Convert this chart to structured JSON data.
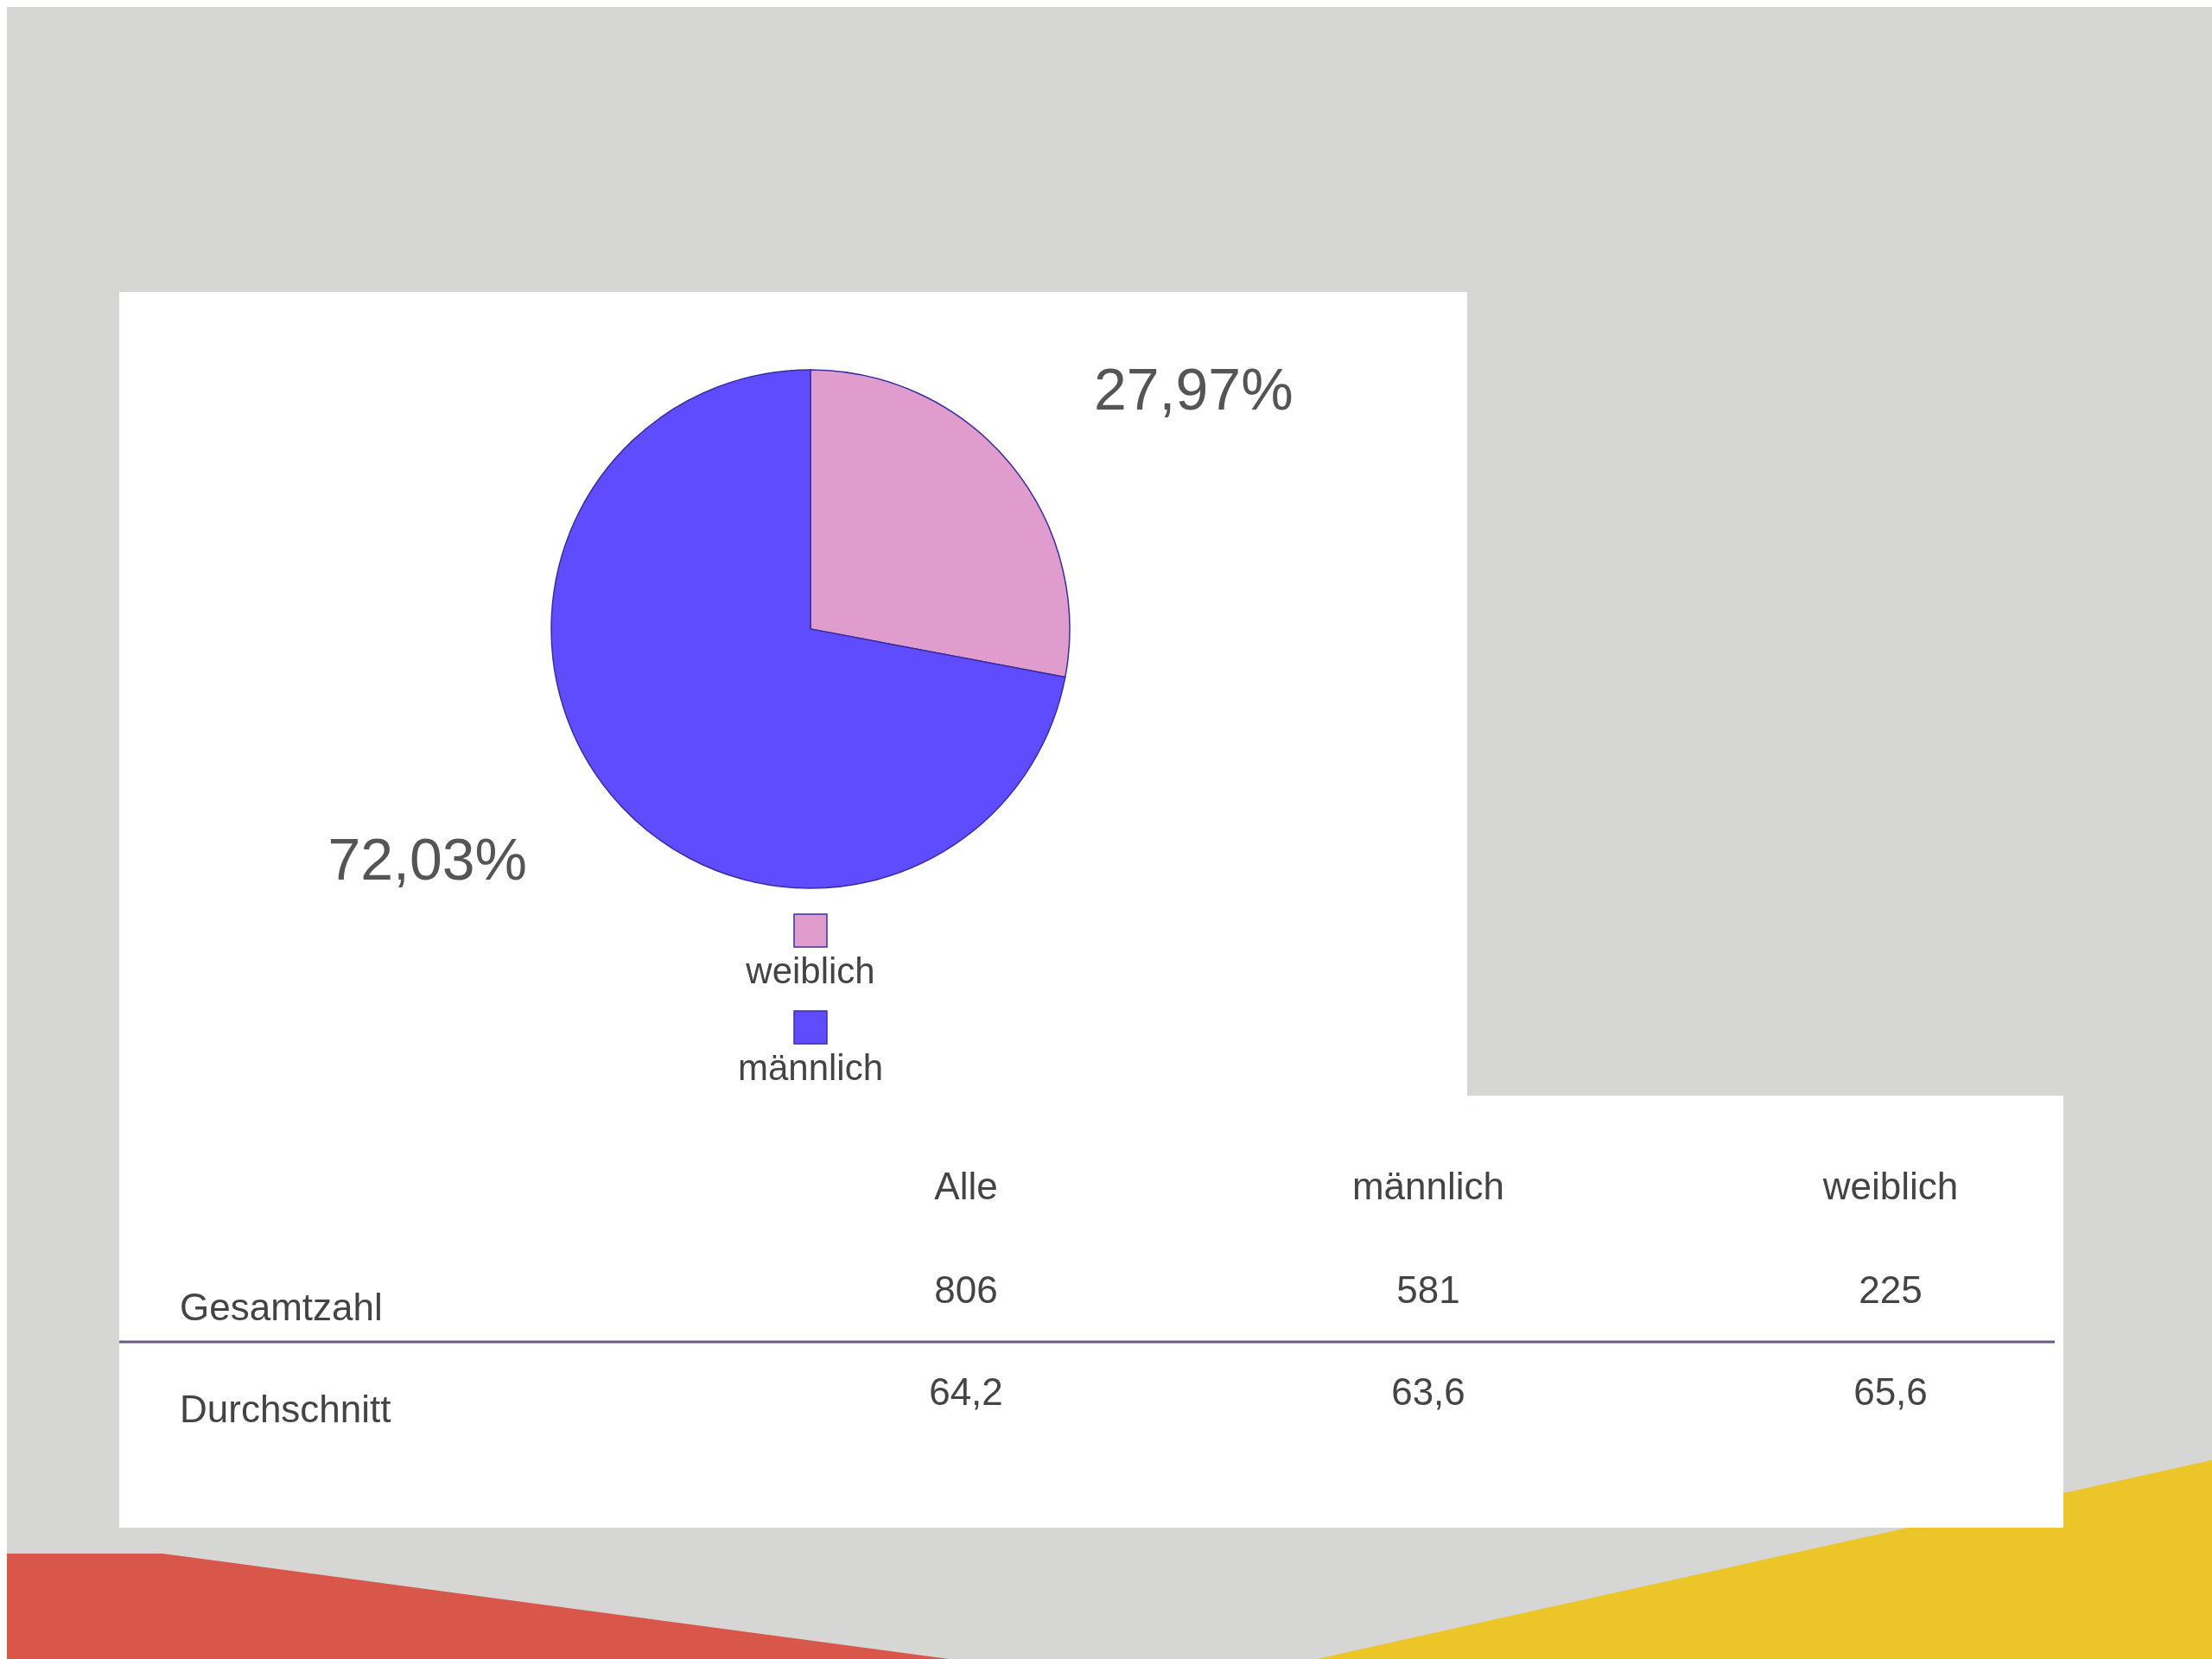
{
  "chart_data": [
    {
      "type": "pie",
      "categories": [
        "weiblich",
        "männlich"
      ],
      "values": [
        27.97,
        72.03
      ],
      "colors": [
        "#e09ccc",
        "#5f4cff"
      ],
      "value_labels": [
        "27,97%",
        "72,03%"
      ],
      "legend": "bottom"
    },
    {
      "type": "other",
      "categories": [
        "Alle",
        "männlich",
        "weiblich"
      ],
      "series": [
        {
          "name": "Gesamtzahl",
          "values": [
            806,
            581,
            225
          ]
        },
        {
          "name": "Durchschnitt",
          "values": [
            64.2,
            63.6,
            65.6
          ],
          "value_labels": [
            "64,2",
            "63,6",
            "65,6"
          ]
        }
      ],
      "data_labels": true
    }
  ]
}
